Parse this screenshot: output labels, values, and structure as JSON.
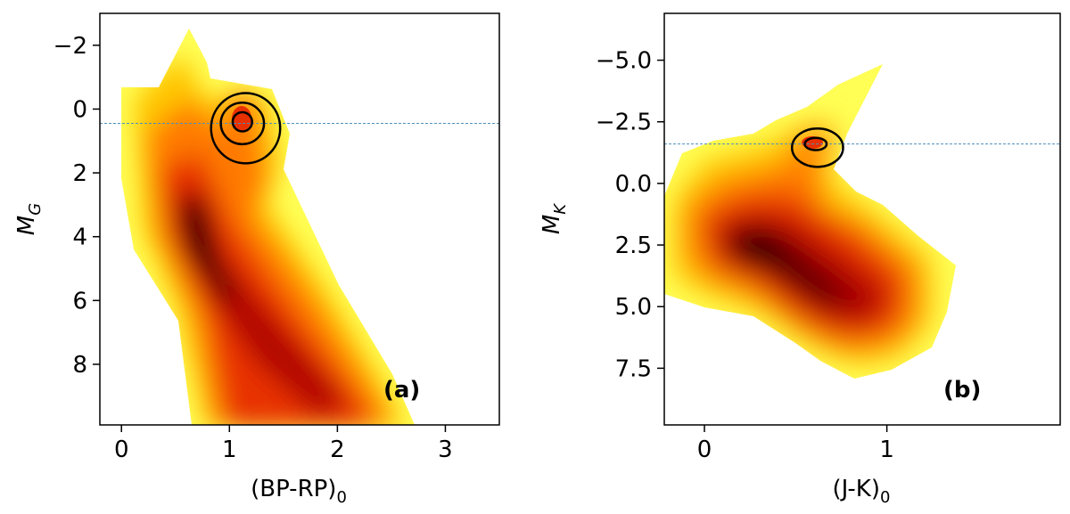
{
  "chart_data": [
    {
      "type": "heatmap",
      "panel_label": "(a)",
      "xlabel_main": "(BP-RP)",
      "xlabel_sub": "0",
      "ylabel_main": "M",
      "ylabel_sub": "G",
      "xlim": [
        -0.2,
        3.5
      ],
      "ylim": [
        9.9,
        -3.0
      ],
      "y_inverted": true,
      "xticks": [
        0,
        1,
        2,
        3
      ],
      "xtick_labels": [
        "0",
        "1",
        "2",
        "3"
      ],
      "yticks": [
        -2,
        0,
        2,
        4,
        6,
        8
      ],
      "ytick_labels": [
        "−2",
        "0",
        "2",
        "4",
        "6",
        "8"
      ],
      "reference_line_y": 0.45,
      "reference_line_color": "#4c8fbd",
      "colormap": [
        "#ffff55",
        "#ffc400",
        "#ff7a00",
        "#e83000",
        "#b00000",
        "#4a0000",
        "#000000"
      ],
      "density_ridge": [
        [
          0.65,
          2.5
        ],
        [
          0.85,
          4.5
        ],
        [
          1.2,
          6.0
        ],
        [
          1.7,
          7.5
        ],
        [
          2.2,
          9.0
        ],
        [
          2.5,
          9.9
        ]
      ],
      "red_clump_center": [
        1.12,
        0.45
      ],
      "contours": [
        {
          "level": "outer",
          "center": [
            1.15,
            0.6
          ],
          "rx": 0.32,
          "ry": 1.1
        },
        {
          "level": "middle",
          "center": [
            1.12,
            0.45
          ],
          "rx": 0.2,
          "ry": 0.65
        },
        {
          "level": "inner",
          "center": [
            1.12,
            0.4
          ],
          "rx": 0.09,
          "ry": 0.3
        }
      ]
    },
    {
      "type": "heatmap",
      "panel_label": "(b)",
      "xlabel_main": "(J-K)",
      "xlabel_sub": "0",
      "ylabel_main": "M",
      "ylabel_sub": "K",
      "xlim": [
        -0.22,
        1.95
      ],
      "ylim": [
        9.8,
        -6.9
      ],
      "y_inverted": true,
      "xticks": [
        0,
        1
      ],
      "xtick_labels": [
        "0",
        "1"
      ],
      "yticks": [
        -5.0,
        -2.5,
        0.0,
        2.5,
        5.0,
        7.5
      ],
      "ytick_labels": [
        "−5.0",
        "−2.5",
        "0.0",
        "2.5",
        "5.0",
        "7.5"
      ],
      "reference_line_y": -1.6,
      "reference_line_color": "#4c8fbd",
      "colormap": [
        "#ffff55",
        "#ffc400",
        "#ff7a00",
        "#e83000",
        "#b00000",
        "#4a0000",
        "#000000"
      ],
      "density_peak": [
        0.3,
        2.7
      ],
      "red_clump_center": [
        0.62,
        -1.6
      ],
      "contours": [
        {
          "level": "outer",
          "center": [
            0.62,
            -1.45
          ],
          "rx": 0.14,
          "ry": 0.78
        },
        {
          "level": "inner",
          "center": [
            0.61,
            -1.6
          ],
          "rx": 0.06,
          "ry": 0.25
        }
      ]
    }
  ]
}
